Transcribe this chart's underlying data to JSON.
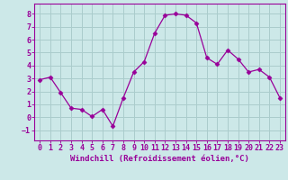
{
  "x": [
    0,
    1,
    2,
    3,
    4,
    5,
    6,
    7,
    8,
    9,
    10,
    11,
    12,
    13,
    14,
    15,
    16,
    17,
    18,
    19,
    20,
    21,
    22,
    23
  ],
  "y": [
    2.9,
    3.1,
    1.9,
    0.7,
    0.6,
    0.05,
    0.6,
    -0.7,
    1.5,
    3.5,
    4.3,
    6.5,
    7.9,
    8.0,
    7.9,
    7.3,
    4.6,
    4.1,
    5.2,
    4.5,
    3.5,
    3.7,
    3.1,
    1.5
  ],
  "line_color": "#990099",
  "marker": "D",
  "marker_size": 2.5,
  "bg_color": "#cce8e8",
  "grid_color": "#aacccc",
  "xlabel": "Windchill (Refroidissement éolien,°C)",
  "xlabel_fontsize": 6.5,
  "tick_fontsize": 6,
  "ylim": [
    -1.8,
    8.8
  ],
  "xlim": [
    -0.5,
    23.5
  ],
  "yticks": [
    -1,
    0,
    1,
    2,
    3,
    4,
    5,
    6,
    7,
    8
  ],
  "xticks": [
    0,
    1,
    2,
    3,
    4,
    5,
    6,
    7,
    8,
    9,
    10,
    11,
    12,
    13,
    14,
    15,
    16,
    17,
    18,
    19,
    20,
    21,
    22,
    23
  ]
}
